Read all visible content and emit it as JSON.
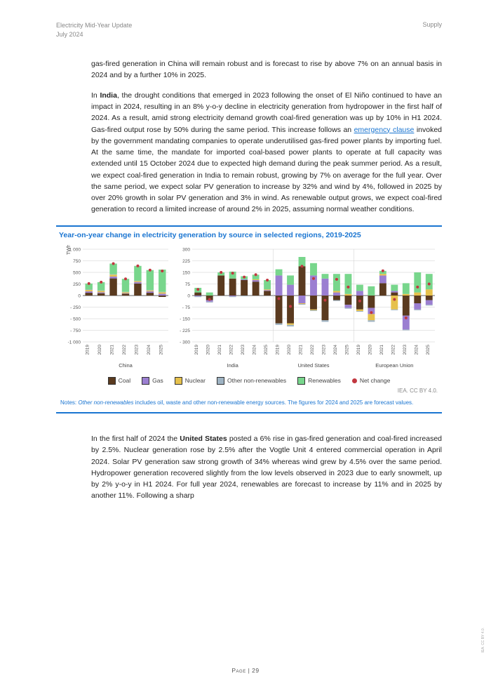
{
  "header": {
    "title": "Electricity Mid-Year Update",
    "date": "July 2024",
    "section": "Supply"
  },
  "para1": "gas-fired generation in China will remain robust and is forecast to rise by above 7% on an annual basis in 2024 and by a further 10% in 2025.",
  "para2_a": "In ",
  "para2_country": "India",
  "para2_b": ", the drought conditions that emerged in 2023 following the onset of El Niño continued to have an impact in 2024, resulting in an 8% y-o-y decline in electricity generation from hydropower in the first half of 2024. As a result, amid strong electricity demand growth coal-fired generation was up by 10% in H1 2024. Gas-fired output rose by 50% during the same period. This increase follows an ",
  "para2_link": "emergency clause",
  "para2_c": " invoked by the government mandating companies to operate underutilised gas-fired power plants by importing fuel. At the same time, the mandate for imported coal-based power plants to operate at full capacity was extended until 15 October 2024 due to expected high demand during the peak summer period. As a result, we expect coal-fired generation in India to remain robust, growing by 7% on average for the full year. Over the same period, we expect solar PV generation to increase by 32% and wind by 4%, followed in 2025 by over 20% growth in solar PV generation and 3% in wind. As renewable output grows, we expect coal-fired generation to record a limited increase of around 2% in 2025, assuming normal weather conditions.",
  "para3_a": "In the first half of 2024 the ",
  "para3_country": "United States",
  "para3_b": " posted a 6% rise in gas-fired generation and coal-fired increased by 2.5%. Nuclear generation rose by 2.5% after the Vogtle Unit 4 entered commercial operation in April 2024. Solar PV generation saw strong growth of 34% whereas wind grew by 4.5% over the same period. Hydropower generation recovered slightly from the low levels observed in 2023 due to early snowmelt, up by 2% y-o-y in H1 2024. For full year 2024, renewables are forecast to increase by 11% and in 2025 by another 11%. Following a sharp",
  "chart": {
    "title": "Year-on-year change in electricity generation by source in selected regions, 2019-2025",
    "unit": "TWh",
    "years": [
      "2019",
      "2020",
      "2021",
      "2022",
      "2023",
      "2024",
      "2025"
    ],
    "colors": {
      "coal": "#5a3a1f",
      "gas": "#9b7fd1",
      "nuclear": "#e6c14c",
      "other": "#9eb3c3",
      "renewables": "#78d68c",
      "net": "#c23740",
      "grid": "#cccccc",
      "axis": "#666666",
      "bg": "#ffffff"
    },
    "left_panel": {
      "ymin": -1000,
      "ymax": 1000,
      "yticks": [
        -1000,
        -750,
        -500,
        -250,
        0,
        250,
        500,
        750,
        1000
      ],
      "ytick_labels": [
        "-1 000",
        "- 750",
        "- 500",
        "- 250",
        "0",
        "250",
        "500",
        "750",
        "1 000"
      ],
      "region": "China",
      "data": [
        {
          "coal": 60,
          "gas": 30,
          "nuclear": 30,
          "other": 10,
          "renewables": 130,
          "net": 260
        },
        {
          "coal": 50,
          "gas": 20,
          "nuclear": 30,
          "other": 10,
          "renewables": 180,
          "net": 290
        },
        {
          "coal": 370,
          "gas": 40,
          "nuclear": 40,
          "other": 10,
          "renewables": 230,
          "net": 690
        },
        {
          "coal": 40,
          "gas": 10,
          "nuclear": 20,
          "other": 10,
          "renewables": 280,
          "net": 360
        },
        {
          "coal": 260,
          "gas": 30,
          "nuclear": 20,
          "other": 10,
          "renewables": 320,
          "net": 640
        },
        {
          "coal": 60,
          "gas": 30,
          "nuclear": 20,
          "other": 10,
          "renewables": 430,
          "net": 550
        },
        {
          "coal": -30,
          "gas": 40,
          "nuclear": 30,
          "other": 10,
          "renewables": 480,
          "net": 530
        }
      ]
    },
    "right_panel": {
      "ymin": -300,
      "ymax": 300,
      "yticks": [
        -300,
        -225,
        -150,
        -75,
        0,
        75,
        150,
        225,
        300
      ],
      "ytick_labels": [
        "- 300",
        "- 225",
        "- 150",
        "- 75",
        "0",
        "75",
        "150",
        "225",
        "300"
      ],
      "regions": [
        {
          "name": "India",
          "data": [
            {
              "coal": 20,
              "gas": -5,
              "nuclear": 0,
              "other": -5,
              "renewables": 30,
              "net": 40
            },
            {
              "coal": -30,
              "gas": -10,
              "nuclear": 0,
              "other": -5,
              "renewables": 20,
              "net": -25
            },
            {
              "coal": 130,
              "gas": 0,
              "nuclear": 0,
              "other": 0,
              "renewables": 20,
              "net": 150
            },
            {
              "coal": 110,
              "gas": -5,
              "nuclear": 0,
              "other": -5,
              "renewables": 45,
              "net": 145
            },
            {
              "coal": 100,
              "gas": 5,
              "nuclear": 0,
              "other": -5,
              "renewables": 20,
              "net": 120
            },
            {
              "coal": 90,
              "gas": 10,
              "nuclear": 5,
              "other": 0,
              "renewables": 30,
              "net": 135
            },
            {
              "coal": 30,
              "gas": 5,
              "nuclear": 5,
              "other": 0,
              "renewables": 60,
              "net": 100
            }
          ]
        },
        {
          "name": "United States",
          "data": [
            {
              "coal": -180,
              "gas": 130,
              "nuclear": 0,
              "other": -10,
              "renewables": 40,
              "net": -20
            },
            {
              "coal": -180,
              "gas": 70,
              "nuclear": -10,
              "other": -10,
              "renewables": 60,
              "net": -70
            },
            {
              "coal": 190,
              "gas": -50,
              "nuclear": -5,
              "other": -5,
              "renewables": 60,
              "net": 190
            },
            {
              "coal": -90,
              "gas": 130,
              "nuclear": -5,
              "other": -5,
              "renewables": 80,
              "net": 110
            },
            {
              "coal": -160,
              "gas": 110,
              "nuclear": 0,
              "other": -10,
              "renewables": 30,
              "net": -30
            },
            {
              "coal": -30,
              "gas": 20,
              "nuclear": 10,
              "other": -5,
              "renewables": 110,
              "net": 105
            },
            {
              "coal": -60,
              "gas": -20,
              "nuclear": 10,
              "other": -5,
              "renewables": 130,
              "net": 55
            }
          ]
        },
        {
          "name": "European Union",
          "data": [
            {
              "coal": -90,
              "gas": 30,
              "nuclear": -10,
              "other": -5,
              "renewables": 40,
              "net": -35
            },
            {
              "coal": -80,
              "gas": -40,
              "nuclear": -40,
              "other": -10,
              "renewables": 60,
              "net": -110
            },
            {
              "coal": 80,
              "gas": 50,
              "nuclear": 10,
              "other": 0,
              "renewables": 20,
              "net": 160
            },
            {
              "coal": 20,
              "gas": 10,
              "nuclear": -90,
              "other": -5,
              "renewables": 40,
              "net": -25
            },
            {
              "coal": -130,
              "gas": -90,
              "nuclear": 10,
              "other": -5,
              "renewables": 70,
              "net": -145
            },
            {
              "coal": -50,
              "gas": -40,
              "nuclear": 20,
              "other": -5,
              "renewables": 130,
              "net": 55
            },
            {
              "coal": -30,
              "gas": -30,
              "nuclear": 40,
              "other": -5,
              "renewables": 100,
              "net": 75
            }
          ]
        }
      ]
    },
    "legend": [
      {
        "key": "coal",
        "label": "Coal"
      },
      {
        "key": "gas",
        "label": "Gas"
      },
      {
        "key": "nuclear",
        "label": "Nuclear"
      },
      {
        "key": "other",
        "label": "Other non-renewables"
      },
      {
        "key": "renewables",
        "label": "Renewables"
      },
      {
        "key": "net",
        "label": "Net change"
      }
    ],
    "attribution": "IEA. CC BY 4.0.",
    "notes_a": "Notes: ",
    "notes_em": "Other non-renewables",
    "notes_b": " includes oil, waste and other non-renewable energy sources. The figures for 2024 and 2025 are forecast values."
  },
  "footer": "Page | 29",
  "side_credit": "IEA. CC BY 4.0."
}
